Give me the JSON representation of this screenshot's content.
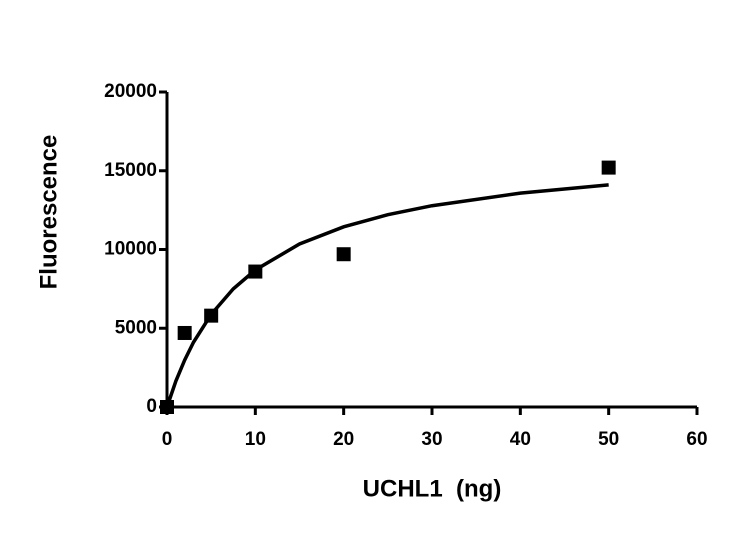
{
  "chart_data": {
    "type": "scatter",
    "x_label": "UCHL1  (ng)",
    "y_label": "Fluorescence",
    "color": "#000000",
    "points": {
      "x": [
        0,
        2,
        5,
        10,
        20,
        50
      ],
      "values": [
        0,
        4700,
        5800,
        8600,
        9700,
        15200
      ]
    },
    "fit": {
      "x": [
        0,
        1,
        2,
        3,
        5,
        7.5,
        10,
        15,
        20,
        25,
        30,
        40,
        50
      ],
      "values": [
        0,
        1640,
        2980,
        4110,
        5880,
        7500,
        8700,
        10350,
        11440,
        12210,
        12780,
        13580,
        14100
      ]
    },
    "xlim": [
      0,
      60
    ],
    "xticks": [
      0,
      10,
      20,
      30,
      40,
      50,
      60
    ],
    "ylim": [
      0,
      20000
    ],
    "yticks": [
      0,
      5000,
      10000,
      15000,
      20000
    ],
    "grid": false
  }
}
